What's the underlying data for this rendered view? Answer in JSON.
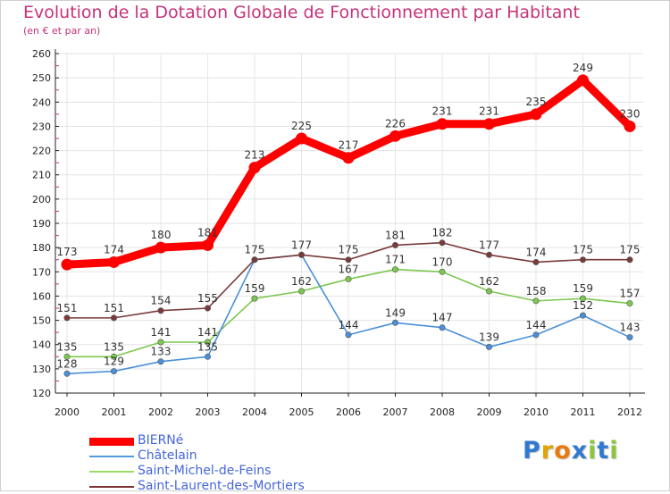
{
  "header": {
    "title": "Evolution de la Dotation Globale de Fonctionnement par Habitant",
    "subtitle": "(en € et par an)"
  },
  "chart_data": {
    "type": "line",
    "title": "Evolution de la Dotation Globale de Fonctionnement par Habitant",
    "subtitle": "(en € et par an)",
    "xlabel": "",
    "ylabel": "",
    "categories": [
      "2000",
      "2001",
      "2002",
      "2003",
      "2004",
      "2005",
      "2006",
      "2007",
      "2008",
      "2009",
      "2010",
      "2011",
      "2012"
    ],
    "ylim": [
      120,
      260
    ],
    "yticks": [
      120,
      130,
      140,
      150,
      160,
      170,
      180,
      190,
      200,
      210,
      220,
      230,
      240,
      250,
      260
    ],
    "grid": true,
    "series": [
      {
        "name": "Saint-Michel-de-Feins",
        "color": "#99dd66",
        "stroke": "#7cc84f",
        "values": [
          135,
          135,
          141,
          141,
          159,
          162,
          167,
          171,
          170,
          162,
          158,
          159,
          157
        ]
      },
      {
        "name": "Châtelain",
        "color": "#5599dd",
        "stroke": "#4a90d9",
        "values": [
          128,
          129,
          133,
          135,
          175,
          177,
          144,
          149,
          147,
          139,
          144,
          152,
          143
        ]
      },
      {
        "name": "Saint-Laurent-des-Mortiers",
        "color": "#773333",
        "stroke": "#7a3a3a",
        "values": [
          151,
          151,
          154,
          155,
          175,
          177,
          175,
          181,
          182,
          177,
          174,
          175,
          175
        ]
      },
      {
        "name": "BIERNé",
        "color": "#ff0000",
        "stroke": "#ff0000",
        "values": [
          173,
          174,
          180,
          181,
          213,
          225,
          217,
          226,
          231,
          231,
          235,
          249,
          230
        ]
      }
    ],
    "label_y_values": {
      "BIERNé": [
        173,
        174,
        180,
        181,
        213,
        225,
        217,
        226,
        231,
        231,
        235,
        249,
        230
      ],
      "Saint-Laurent-des-Mortiers": [
        151,
        151,
        154,
        155,
        175,
        177,
        175,
        181,
        182,
        177,
        174,
        175,
        175
      ],
      "Saint-Michel-de-Feins": [
        135,
        135,
        141,
        141,
        159,
        162,
        167,
        171,
        170,
        162,
        158,
        159,
        157
      ],
      "Châtelain": [
        128,
        129,
        133,
        135,
        null,
        null,
        144,
        149,
        147,
        139,
        144,
        152,
        143
      ]
    }
  },
  "legend": {
    "items": [
      {
        "label": "BIERNé",
        "color": "#ff0000"
      },
      {
        "label": "Châtelain",
        "color": "#5599dd"
      },
      {
        "label": "Saint-Michel-de-Feins",
        "color": "#99dd66"
      },
      {
        "label": "Saint-Laurent-des-Mortiers",
        "color": "#773333"
      }
    ]
  },
  "logo": {
    "text": "Proxiti",
    "letters": [
      "P",
      "r",
      "o",
      "x",
      "i",
      "t",
      "i"
    ],
    "colors": [
      "#2f7ad0",
      "#e2a400",
      "#e97a10",
      "#2f7ad0",
      "#8cc63e",
      "#2f7ad0",
      "#8cc63e"
    ]
  }
}
